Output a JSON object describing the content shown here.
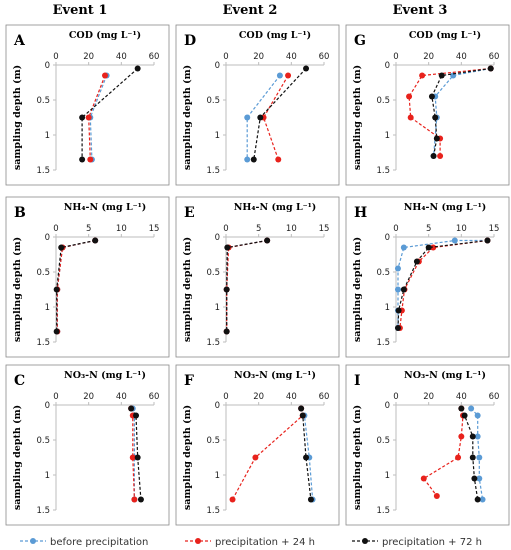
{
  "events": [
    "Event 1",
    "Event 2",
    "Event 3"
  ],
  "ylabel": "sampling depth (m)",
  "colors": {
    "before precipitation": "#5b9bd5",
    "precipitation + 24 h": "#e8221c",
    "precipitation + 72 h": "#111111"
  },
  "legend": [
    "before precipitation",
    "precipitation + 24 h",
    "precipitation + 72 h"
  ],
  "chart_data": [
    {
      "type": "line",
      "letter": "A",
      "title": "COD (mg L⁻¹)",
      "xlim": [
        0,
        60
      ],
      "xticks": [
        "0",
        "20",
        "40",
        "60"
      ],
      "ylim": [
        0,
        1.5
      ],
      "yticks": [
        "0",
        "0.5",
        "1",
        "1.5"
      ],
      "series": [
        {
          "name": "before precipitation",
          "x": [
            31,
            21,
            22
          ],
          "y": [
            0.15,
            0.75,
            1.35
          ]
        },
        {
          "name": "precipitation + 24 h",
          "x": [
            30,
            20,
            21
          ],
          "y": [
            0.15,
            0.75,
            1.35
          ]
        },
        {
          "name": "precipitation + 72 h",
          "x": [
            50,
            16,
            16
          ],
          "y": [
            0.05,
            0.75,
            1.35
          ]
        }
      ]
    },
    {
      "type": "line",
      "letter": "D",
      "title": "COD (mg L⁻¹)",
      "xlim": [
        0,
        60
      ],
      "xticks": [
        "0",
        "20",
        "40",
        "60"
      ],
      "ylim": [
        0,
        1.5
      ],
      "yticks": [
        "0",
        "0.5",
        "1",
        "1.5"
      ],
      "series": [
        {
          "name": "before precipitation",
          "x": [
            33,
            13,
            13
          ],
          "y": [
            0.15,
            0.75,
            1.35
          ]
        },
        {
          "name": "precipitation + 24 h",
          "x": [
            38,
            23,
            32
          ],
          "y": [
            0.15,
            0.75,
            1.35
          ]
        },
        {
          "name": "precipitation + 72 h",
          "x": [
            49,
            21,
            17
          ],
          "y": [
            0.05,
            0.75,
            1.35
          ]
        }
      ]
    },
    {
      "type": "line",
      "letter": "G",
      "title": "COD (mg L⁻¹)",
      "xlim": [
        0,
        60
      ],
      "xticks": [
        "0",
        "20",
        "40",
        "60"
      ],
      "ylim": [
        0,
        1.5
      ],
      "yticks": [
        "0",
        "0.5",
        "1",
        "1.5"
      ],
      "series": [
        {
          "name": "before precipitation",
          "x": [
            58,
            35,
            24,
            25,
            23
          ],
          "y": [
            0.05,
            0.15,
            0.45,
            0.75,
            1.3
          ]
        },
        {
          "name": "precipitation + 24 h",
          "x": [
            58,
            16,
            8,
            9,
            27,
            27
          ],
          "y": [
            0.05,
            0.15,
            0.45,
            0.75,
            1.05,
            1.3
          ]
        },
        {
          "name": "precipitation + 72 h",
          "x": [
            58,
            28,
            22,
            24,
            25,
            23
          ],
          "y": [
            0.05,
            0.15,
            0.45,
            0.75,
            1.05,
            1.3
          ]
        }
      ]
    },
    {
      "type": "line",
      "letter": "B",
      "title": "NH₄-N (mg L⁻¹)",
      "xlim": [
        0,
        15
      ],
      "xticks": [
        "0",
        "5",
        "10",
        "15"
      ],
      "ylim": [
        0,
        1.5
      ],
      "yticks": [
        "0",
        "0.5",
        "1",
        "1.5"
      ],
      "series": [
        {
          "name": "before precipitation",
          "x": [
            6,
            1,
            0.2,
            0.2
          ],
          "y": [
            0.05,
            0.15,
            0.75,
            1.35
          ]
        },
        {
          "name": "precipitation + 24 h",
          "x": [
            6,
            1,
            0.2,
            0.2
          ],
          "y": [
            0.05,
            0.15,
            0.75,
            1.35
          ]
        },
        {
          "name": "precipitation + 72 h",
          "x": [
            6,
            0.8,
            0.1,
            0.1
          ],
          "y": [
            0.05,
            0.15,
            0.75,
            1.35
          ]
        }
      ]
    },
    {
      "type": "line",
      "letter": "E",
      "title": "NH₄-N (mg L⁻¹)",
      "xlim": [
        0,
        15
      ],
      "xticks": [
        "0",
        "5",
        "10",
        "15"
      ],
      "ylim": [
        0,
        1.5
      ],
      "yticks": [
        "0",
        "0.5",
        "1",
        "1.5"
      ],
      "series": [
        {
          "name": "before precipitation",
          "x": [
            6.3,
            0.3,
            0.1,
            0.1
          ],
          "y": [
            0.05,
            0.15,
            0.75,
            1.35
          ]
        },
        {
          "name": "precipitation + 24 h",
          "x": [
            6.3,
            0.4,
            0.1,
            0.1
          ],
          "y": [
            0.05,
            0.15,
            0.75,
            1.35
          ]
        },
        {
          "name": "precipitation + 72 h",
          "x": [
            6.3,
            0.2,
            0.1,
            0.1
          ],
          "y": [
            0.05,
            0.15,
            0.75,
            1.35
          ]
        }
      ]
    },
    {
      "type": "line",
      "letter": "H",
      "title": "NH₄-N (mg L⁻¹)",
      "xlim": [
        0,
        15
      ],
      "xticks": [
        "0",
        "5",
        "10",
        "15"
      ],
      "ylim": [
        0,
        1.5
      ],
      "yticks": [
        "0",
        "0.5",
        "1",
        "1.5"
      ],
      "series": [
        {
          "name": "before precipitation",
          "x": [
            14,
            9,
            1.2,
            0.3,
            0.3,
            0.3,
            0.3
          ],
          "y": [
            0.05,
            0.05,
            0.15,
            0.45,
            0.75,
            1.05,
            1.3
          ]
        },
        {
          "name": "precipitation + 24 h",
          "x": [
            14,
            5.7,
            3.5,
            1.3,
            0.9,
            0.6
          ],
          "y": [
            0.05,
            0.15,
            0.35,
            0.75,
            1.05,
            1.3
          ]
        },
        {
          "name": "precipitation + 72 h",
          "x": [
            14,
            5,
            3.2,
            1.2,
            0.4,
            0.3
          ],
          "y": [
            0.05,
            0.15,
            0.35,
            0.75,
            1.05,
            1.3
          ]
        }
      ]
    },
    {
      "type": "line",
      "letter": "C",
      "title": "NO₃-N (mg L⁻¹)",
      "xlim": [
        0,
        60
      ],
      "xticks": [
        "0",
        "20",
        "40",
        "60"
      ],
      "ylim": [
        0,
        1.5
      ],
      "yticks": [
        "0",
        "0.5",
        "1",
        "1.5"
      ],
      "series": [
        {
          "name": "before precipitation",
          "x": [
            47,
            48,
            48,
            48
          ],
          "y": [
            0.05,
            0.15,
            0.75,
            1.35
          ]
        },
        {
          "name": "precipitation + 24 h",
          "x": [
            46,
            47,
            47,
            48
          ],
          "y": [
            0.05,
            0.15,
            0.75,
            1.35
          ]
        },
        {
          "name": "precipitation + 72 h",
          "x": [
            46,
            49,
            50,
            52
          ],
          "y": [
            0.05,
            0.15,
            0.75,
            1.35
          ]
        }
      ]
    },
    {
      "type": "line",
      "letter": "F",
      "title": "NO₃-N (mg L⁻¹)",
      "xlim": [
        0,
        60
      ],
      "xticks": [
        "0",
        "20",
        "40",
        "60"
      ],
      "ylim": [
        0,
        1.5
      ],
      "yticks": [
        "0",
        "0.5",
        "1",
        "1.5"
      ],
      "series": [
        {
          "name": "before precipitation",
          "x": [
            46,
            48,
            51,
            53
          ],
          "y": [
            0.05,
            0.15,
            0.75,
            1.35
          ]
        },
        {
          "name": "precipitation + 24 h",
          "x": [
            46,
            47,
            18,
            4
          ],
          "y": [
            0.05,
            0.15,
            0.75,
            1.35
          ]
        },
        {
          "name": "precipitation + 72 h",
          "x": [
            46,
            47,
            49,
            52
          ],
          "y": [
            0.05,
            0.15,
            0.75,
            1.35
          ]
        }
      ]
    },
    {
      "type": "line",
      "letter": "I",
      "title": "NO₃-N (mg L⁻¹)",
      "xlim": [
        0,
        60
      ],
      "xticks": [
        "0",
        "20",
        "40",
        "60"
      ],
      "ylim": [
        0,
        1.5
      ],
      "yticks": [
        "0",
        "0.5",
        "1",
        "1.5"
      ],
      "series": [
        {
          "name": "before precipitation",
          "x": [
            46,
            50,
            50,
            51,
            51,
            53
          ],
          "y": [
            0.05,
            0.15,
            0.45,
            0.75,
            1.05,
            1.35
          ]
        },
        {
          "name": "precipitation + 24 h",
          "x": [
            40,
            41,
            40,
            38,
            17,
            25
          ],
          "y": [
            0.05,
            0.15,
            0.45,
            0.75,
            1.05,
            1.3
          ]
        },
        {
          "name": "precipitation + 72 h",
          "x": [
            40,
            42,
            47,
            47,
            48,
            50
          ],
          "y": [
            0.05,
            0.15,
            0.45,
            0.75,
            1.05,
            1.35
          ]
        }
      ]
    }
  ]
}
